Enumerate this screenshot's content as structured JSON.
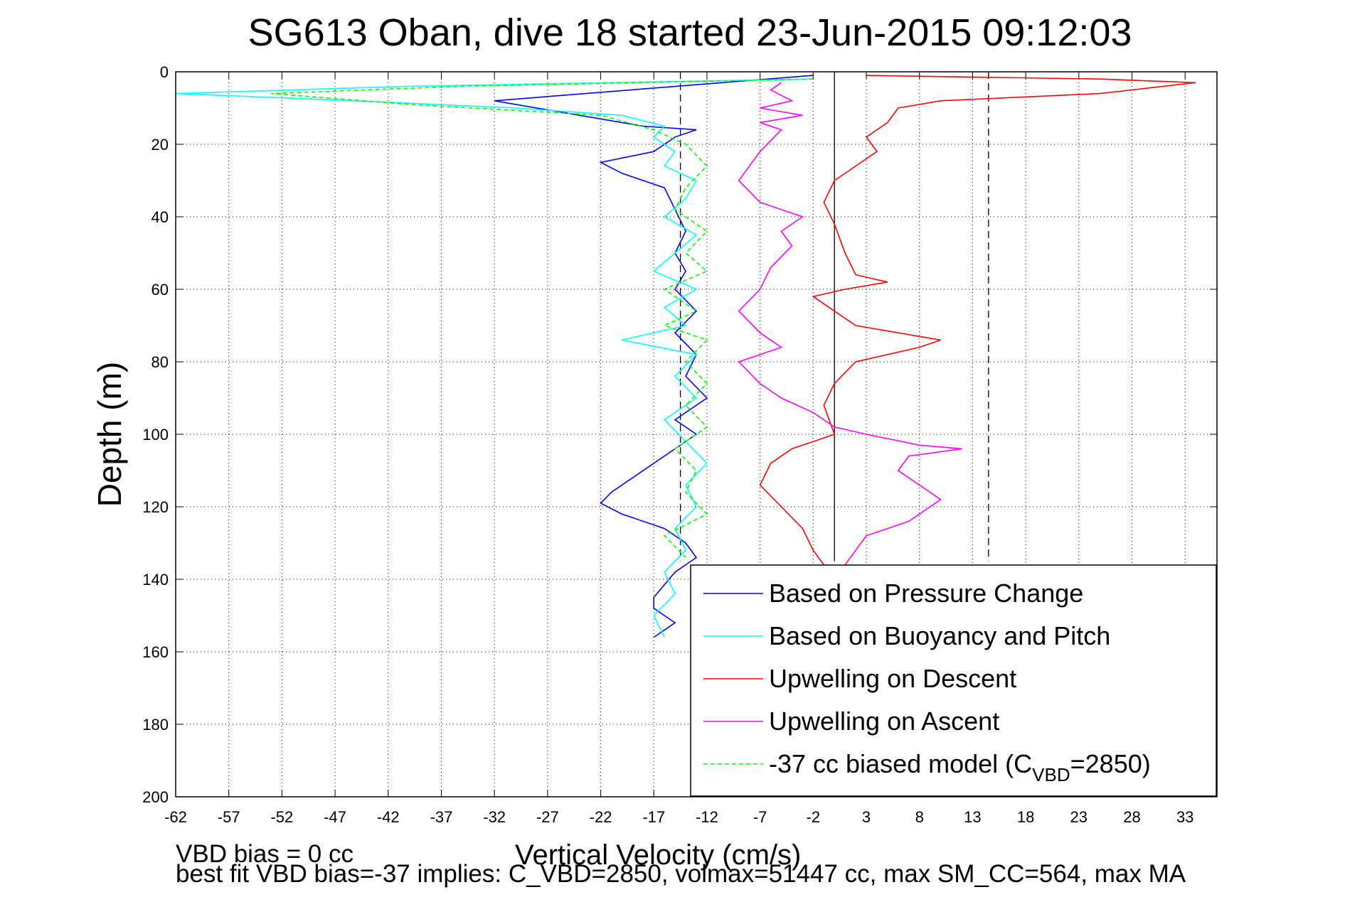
{
  "chart_data": {
    "type": "line",
    "title": "SG613 Oban, dive 18 started 23-Jun-2015 09:12:03",
    "xlabel": "Vertical Velocity (cm/s)",
    "ylabel": "Depth (m)",
    "xlim": [
      -62,
      36
    ],
    "ylim": [
      0,
      200
    ],
    "y_reversed": true,
    "grid": true,
    "legend_position": "bottom-right",
    "x_ticks": [
      -62,
      -57,
      -52,
      -47,
      -42,
      -37,
      -32,
      -27,
      -22,
      -17,
      -12,
      -7,
      -2,
      3,
      8,
      13,
      18,
      23,
      28,
      33
    ],
    "y_ticks": [
      0,
      20,
      40,
      60,
      80,
      100,
      120,
      140,
      160,
      180,
      200
    ],
    "reference_lines": [
      {
        "x": -14.5,
        "style": "dashed"
      },
      {
        "x": 0,
        "style": "solid"
      },
      {
        "x": 14.5,
        "style": "dashed"
      }
    ],
    "series": [
      {
        "name": "Based on Pressure Change",
        "color": "#0000ff",
        "style": "solid",
        "points": [
          [
            -2,
            1
          ],
          [
            -32,
            8
          ],
          [
            -20,
            14
          ],
          [
            -18,
            15
          ],
          [
            -13,
            16
          ],
          [
            -15,
            18
          ],
          [
            -17,
            22
          ],
          [
            -22,
            25
          ],
          [
            -20,
            28
          ],
          [
            -16,
            32
          ],
          [
            -15,
            38
          ],
          [
            -14,
            44
          ],
          [
            -15,
            50
          ],
          [
            -14,
            55
          ],
          [
            -15,
            60
          ],
          [
            -13,
            66
          ],
          [
            -15,
            72
          ],
          [
            -13,
            78
          ],
          [
            -14,
            84
          ],
          [
            -12,
            90
          ],
          [
            -15,
            96
          ],
          [
            -13,
            100
          ],
          [
            -15,
            104
          ],
          [
            -17,
            108
          ],
          [
            -19,
            112
          ],
          [
            -21,
            116
          ],
          [
            -22,
            119
          ],
          [
            -20,
            122
          ],
          [
            -16,
            126
          ],
          [
            -14,
            130
          ],
          [
            -13,
            134
          ],
          [
            -15,
            138
          ],
          [
            -17,
            145
          ],
          [
            -17,
            148
          ],
          [
            -15,
            152
          ],
          [
            -17,
            156
          ]
        ]
      },
      {
        "name": "Based on Buoyancy and Pitch",
        "color": "#00ffff",
        "style": "solid",
        "points": [
          [
            -2,
            2
          ],
          [
            -40,
            4
          ],
          [
            -62,
            6
          ],
          [
            -45,
            8
          ],
          [
            -30,
            10
          ],
          [
            -20,
            12
          ],
          [
            -16,
            15
          ],
          [
            -17,
            18
          ],
          [
            -15,
            22
          ],
          [
            -16,
            26
          ],
          [
            -13,
            30
          ],
          [
            -14,
            35
          ],
          [
            -16,
            40
          ],
          [
            -13,
            45
          ],
          [
            -15,
            50
          ],
          [
            -17,
            55
          ],
          [
            -13,
            60
          ],
          [
            -16,
            65
          ],
          [
            -14,
            70
          ],
          [
            -20,
            74
          ],
          [
            -13,
            78
          ],
          [
            -15,
            84
          ],
          [
            -13,
            90
          ],
          [
            -16,
            96
          ],
          [
            -14,
            102
          ],
          [
            -12,
            108
          ],
          [
            -14,
            114
          ],
          [
            -13,
            120
          ],
          [
            -15,
            126
          ],
          [
            -14,
            132
          ],
          [
            -16,
            138
          ],
          [
            -15,
            144
          ],
          [
            -17,
            150
          ],
          [
            -16,
            156
          ]
        ]
      },
      {
        "name": "Upwelling on Descent",
        "color": "#ff0000",
        "style": "solid",
        "points": [
          [
            3,
            1
          ],
          [
            25,
            2
          ],
          [
            34,
            3
          ],
          [
            25,
            6
          ],
          [
            10,
            8
          ],
          [
            6,
            10
          ],
          [
            5,
            14
          ],
          [
            3,
            18
          ],
          [
            4,
            22
          ],
          [
            2,
            26
          ],
          [
            0,
            30
          ],
          [
            -1,
            36
          ],
          [
            0,
            42
          ],
          [
            1,
            50
          ],
          [
            2,
            56
          ],
          [
            5,
            58
          ],
          [
            1,
            60
          ],
          [
            -2,
            62
          ],
          [
            0,
            66
          ],
          [
            2,
            70
          ],
          [
            6,
            72
          ],
          [
            10,
            74
          ],
          [
            8,
            76
          ],
          [
            2,
            80
          ],
          [
            0,
            86
          ],
          [
            -1,
            92
          ],
          [
            0,
            100
          ],
          [
            -4,
            104
          ],
          [
            -6,
            108
          ],
          [
            -7,
            114
          ],
          [
            -5,
            120
          ],
          [
            -3,
            126
          ],
          [
            -2,
            132
          ],
          [
            -1,
            136
          ]
        ]
      },
      {
        "name": "Upwelling on Ascent",
        "color": "#ff00ff",
        "style": "solid",
        "points": [
          [
            -5,
            3
          ],
          [
            -6,
            5
          ],
          [
            -4,
            8
          ],
          [
            -7,
            10
          ],
          [
            -3,
            12
          ],
          [
            -7,
            14
          ],
          [
            -5,
            16
          ],
          [
            -7,
            22
          ],
          [
            -9,
            30
          ],
          [
            -7,
            36
          ],
          [
            -3,
            40
          ],
          [
            -5,
            44
          ],
          [
            -4,
            48
          ],
          [
            -6,
            54
          ],
          [
            -7,
            60
          ],
          [
            -9,
            66
          ],
          [
            -7,
            72
          ],
          [
            -5,
            76
          ],
          [
            -9,
            80
          ],
          [
            -7,
            86
          ],
          [
            -5,
            90
          ],
          [
            -2,
            94
          ],
          [
            0,
            98
          ],
          [
            3,
            100
          ],
          [
            8,
            103
          ],
          [
            12,
            104
          ],
          [
            7,
            106
          ],
          [
            6,
            110
          ],
          [
            8,
            114
          ],
          [
            10,
            118
          ],
          [
            7,
            124
          ],
          [
            3,
            128
          ],
          [
            2,
            132
          ],
          [
            1,
            136
          ]
        ]
      },
      {
        "name": "-37 cc biased model (C_VBD=2850)",
        "color": "#00ff00",
        "style": "dashed",
        "points": [
          [
            -2,
            2
          ],
          [
            -35,
            4
          ],
          [
            -53,
            6
          ],
          [
            -40,
            9
          ],
          [
            -22,
            12
          ],
          [
            -17,
            16
          ],
          [
            -14,
            20
          ],
          [
            -12,
            26
          ],
          [
            -14,
            32
          ],
          [
            -15,
            38
          ],
          [
            -12,
            44
          ],
          [
            -14,
            50
          ],
          [
            -12,
            55
          ],
          [
            -16,
            60
          ],
          [
            -13,
            66
          ],
          [
            -16,
            70
          ],
          [
            -12,
            74
          ],
          [
            -14,
            80
          ],
          [
            -12,
            86
          ],
          [
            -14,
            92
          ],
          [
            -12,
            98
          ],
          [
            -15,
            104
          ],
          [
            -13,
            110
          ],
          [
            -14,
            116
          ],
          [
            -12,
            122
          ],
          [
            -16,
            128
          ],
          [
            -14,
            134
          ]
        ]
      }
    ],
    "legend_label_main": "-37 cc biased model (C",
    "legend_label_sub": "VBD",
    "legend_label_end": "=2850)"
  },
  "footer": {
    "line1": "VBD bias = 0 cc",
    "line2": "best fit VBD bias=-37 implies: C_VBD=2850, volmax=51447 cc, max SM_CC=564, max MA"
  }
}
